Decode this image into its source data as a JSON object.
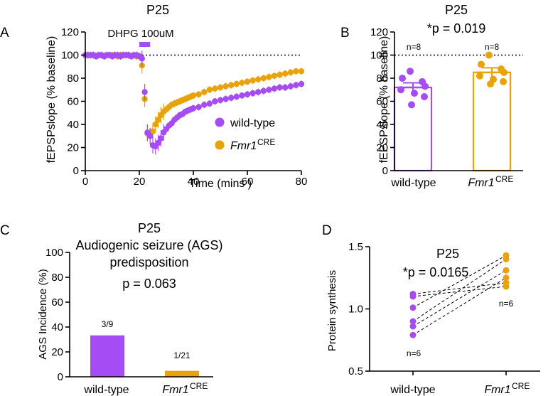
{
  "colors": {
    "wt": "#a54cf5",
    "ko": "#e8a20a"
  },
  "chart_data": [
    {
      "panel": "A",
      "type": "scatter",
      "title": "P25",
      "xlabel": "Time (mins )",
      "ylabel": "fEPSPslope (% baseline)",
      "xlim": [
        0,
        80
      ],
      "ylim": [
        0,
        120
      ],
      "xticks": [
        0,
        20,
        40,
        60,
        80
      ],
      "yticks": [
        0,
        20,
        40,
        60,
        80,
        100,
        120
      ],
      "drug_label": "DHPG 100uM",
      "drug_range": [
        20,
        24
      ],
      "reference_line": 100,
      "legend": {
        "items": [
          {
            "name": "wild-type",
            "sup": ""
          },
          {
            "name": "Fmr1",
            "sup": "CRE"
          }
        ],
        "placement": "right"
      },
      "series": [
        {
          "name": "wild-type",
          "points": [
            [
              0,
              100
            ],
            [
              1,
              100
            ],
            [
              2,
              100
            ],
            [
              3,
              100
            ],
            [
              4,
              99
            ],
            [
              5,
              100
            ],
            [
              6,
              100
            ],
            [
              7,
              99
            ],
            [
              8,
              100
            ],
            [
              9,
              100
            ],
            [
              10,
              99
            ],
            [
              11,
              100
            ],
            [
              12,
              100
            ],
            [
              13,
              99
            ],
            [
              14,
              100
            ],
            [
              15,
              100
            ],
            [
              16,
              100
            ],
            [
              17,
              99
            ],
            [
              18,
              100
            ],
            [
              19,
              100
            ],
            [
              20,
              99
            ],
            [
              21,
              97
            ],
            [
              22,
              68
            ],
            [
              23,
              33
            ],
            [
              24,
              30
            ],
            [
              25,
              22
            ],
            [
              26,
              21
            ],
            [
              27,
              24
            ],
            [
              28,
              28
            ],
            [
              29,
              33
            ],
            [
              30,
              36
            ],
            [
              31,
              39
            ],
            [
              32,
              41
            ],
            [
              33,
              44
            ],
            [
              34,
              46
            ],
            [
              35,
              48
            ],
            [
              36,
              49
            ],
            [
              37,
              51
            ],
            [
              38,
              52
            ],
            [
              39,
              53
            ],
            [
              40,
              54
            ],
            [
              42,
              55
            ],
            [
              44,
              57
            ],
            [
              46,
              58
            ],
            [
              48,
              60
            ],
            [
              50,
              61
            ],
            [
              52,
              62
            ],
            [
              54,
              63
            ],
            [
              56,
              64
            ],
            [
              58,
              65
            ],
            [
              60,
              66
            ],
            [
              62,
              67
            ],
            [
              64,
              68
            ],
            [
              66,
              69
            ],
            [
              68,
              70
            ],
            [
              70,
              71
            ],
            [
              72,
              72
            ],
            [
              74,
              72
            ],
            [
              76,
              73
            ],
            [
              78,
              74
            ],
            [
              80,
              75
            ]
          ]
        },
        {
          "name": "Fmr1",
          "points": [
            [
              0,
              100
            ],
            [
              1,
              100
            ],
            [
              2,
              100
            ],
            [
              3,
              100
            ],
            [
              4,
              99
            ],
            [
              5,
              100
            ],
            [
              6,
              100
            ],
            [
              7,
              99
            ],
            [
              8,
              100
            ],
            [
              9,
              100
            ],
            [
              10,
              100
            ],
            [
              11,
              100
            ],
            [
              12,
              99
            ],
            [
              13,
              100
            ],
            [
              14,
              100
            ],
            [
              15,
              100
            ],
            [
              16,
              100
            ],
            [
              17,
              99
            ],
            [
              18,
              100
            ],
            [
              19,
              99
            ],
            [
              20,
              99
            ],
            [
              21,
              91
            ],
            [
              22,
              62
            ],
            [
              23,
              32
            ],
            [
              24,
              30
            ],
            [
              25,
              34
            ],
            [
              26,
              40
            ],
            [
              27,
              44
            ],
            [
              28,
              48
            ],
            [
              29,
              51
            ],
            [
              30,
              53
            ],
            [
              31,
              55
            ],
            [
              32,
              57
            ],
            [
              33,
              58
            ],
            [
              34,
              59
            ],
            [
              35,
              60
            ],
            [
              36,
              61
            ],
            [
              37,
              62
            ],
            [
              38,
              63
            ],
            [
              39,
              64
            ],
            [
              40,
              65
            ],
            [
              42,
              66
            ],
            [
              44,
              68
            ],
            [
              46,
              70
            ],
            [
              48,
              71
            ],
            [
              50,
              72
            ],
            [
              52,
              73
            ],
            [
              54,
              74
            ],
            [
              56,
              75
            ],
            [
              58,
              76
            ],
            [
              60,
              77
            ],
            [
              62,
              78
            ],
            [
              64,
              79
            ],
            [
              66,
              80
            ],
            [
              68,
              81
            ],
            [
              70,
              82
            ],
            [
              72,
              83
            ],
            [
              74,
              84
            ],
            [
              76,
              85
            ],
            [
              78,
              86
            ],
            [
              80,
              86
            ]
          ]
        }
      ]
    },
    {
      "panel": "B",
      "type": "bar",
      "title": "P25",
      "stat": "*p = 0.019",
      "ylabel": "fEPSPslope (% baseline)",
      "ylim": [
        0,
        120
      ],
      "yticks": [
        0,
        20,
        40,
        60,
        80,
        100,
        120
      ],
      "reference_line": 100,
      "categories": [
        {
          "name": "wild-type",
          "sup": ""
        },
        {
          "name": "Fmr1",
          "sup": "CRE"
        }
      ],
      "means": [
        72,
        85
      ],
      "sem": [
        4,
        4
      ],
      "n_labels": [
        "n=8",
        "n=8"
      ],
      "points": [
        [
          86,
          80,
          77,
          73,
          70,
          67,
          64,
          57
        ],
        [
          100,
          92,
          88,
          85,
          82,
          79,
          77,
          75
        ]
      ]
    },
    {
      "panel": "C",
      "type": "bar",
      "title": "P25",
      "subtitle": [
        "Audiogenic seizure (AGS)",
        "predisposition"
      ],
      "stat": "p = 0.063",
      "ylabel": "AGS Incidence (%)",
      "ylim": [
        0,
        100
      ],
      "yticks": [
        0,
        20,
        40,
        60,
        80,
        100
      ],
      "categories": [
        {
          "name": "wild-type",
          "sup": ""
        },
        {
          "name": "Fmr1",
          "sup": "CRE"
        }
      ],
      "values": [
        33.3,
        4.8
      ],
      "bar_labels": [
        "3/9",
        "1/21"
      ]
    },
    {
      "panel": "D",
      "type": "scatter",
      "title": "P25",
      "stat": "*p = 0.0165",
      "ylabel": "Protein synthesis",
      "ylim": [
        0.5,
        1.5
      ],
      "yticks": [
        "0.5",
        "1.0",
        "1.5"
      ],
      "categories": [
        {
          "name": "wild-type",
          "sup": ""
        },
        {
          "name": "Fmr1",
          "sup": "CRE"
        }
      ],
      "n_labels": [
        "n=6",
        "n=6"
      ],
      "pairs": [
        [
          1.12,
          1.21
        ],
        [
          1.1,
          1.18
        ],
        [
          1.01,
          1.43
        ],
        [
          0.9,
          1.4
        ],
        [
          0.86,
          1.31
        ],
        [
          0.79,
          1.25
        ]
      ]
    }
  ]
}
